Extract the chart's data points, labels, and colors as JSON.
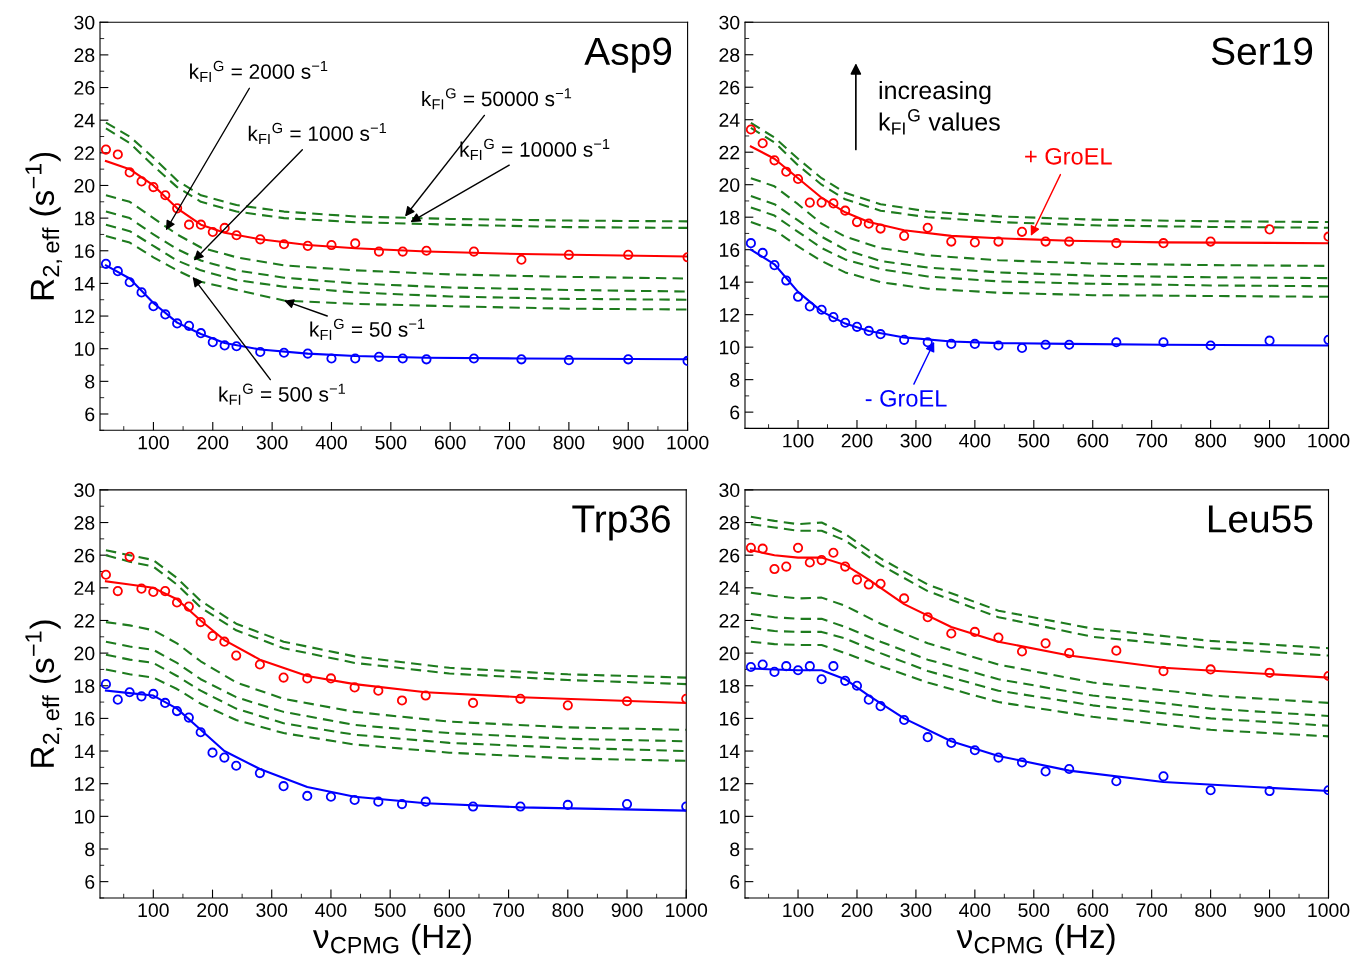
{
  "chart_data": [
    {
      "type": "line",
      "title": "Asp9",
      "ylabel": "R$_{2,eff}$ (s$^{−1}$)",
      "xlim": [
        10,
        1000
      ],
      "xticks": [
        100,
        200,
        300,
        400,
        500,
        600,
        700,
        800,
        900,
        1000
      ],
      "ylim": [
        5,
        30
      ],
      "yticks": [
        6,
        8,
        10,
        12,
        14,
        16,
        18,
        20,
        22,
        24,
        26,
        28,
        30
      ],
      "x": [
        20,
        40,
        60,
        80,
        100,
        120,
        140,
        160,
        180,
        200,
        220,
        240,
        280,
        320,
        360,
        400,
        440,
        480,
        520,
        560,
        640,
        720,
        800,
        900,
        1000
      ],
      "series": [
        {
          "type": "scatter",
          "marker": "circle",
          "color": "#ff0000",
          "values": [
            22.2,
            21.9,
            20.8,
            20.25,
            19.9,
            19.4,
            18.6,
            17.6,
            17.6,
            17.15,
            17.4,
            16.95,
            16.7,
            16.4,
            16.3,
            16.35,
            16.45,
            15.95,
            15.95,
            16.0,
            15.95,
            15.45,
            15.75,
            15.75,
            15.6
          ]
        },
        {
          "type": "line",
          "color": "#ff0000",
          "x": [
            20,
            60,
            100,
            140,
            180,
            220,
            280,
            360,
            440,
            560,
            720,
            1000
          ],
          "values": [
            21.5,
            21.0,
            20.0,
            18.6,
            17.6,
            17.1,
            16.7,
            16.35,
            16.15,
            15.95,
            15.8,
            15.65
          ]
        },
        {
          "type": "scatter",
          "marker": "circle",
          "color": "#0000ff",
          "values": [
            15.2,
            14.75,
            14.07,
            13.45,
            12.6,
            12.1,
            11.55,
            11.4,
            10.95,
            10.4,
            10.2,
            10.15,
            9.8,
            9.75,
            9.7,
            9.4,
            9.4,
            9.5,
            9.4,
            9.35,
            9.4,
            9.35,
            9.3,
            9.35,
            9.25
          ]
        },
        {
          "type": "line",
          "color": "#0000ff",
          "x": [
            20,
            60,
            100,
            140,
            180,
            220,
            280,
            360,
            440,
            560,
            720,
            1000
          ],
          "values": [
            15.1,
            14.3,
            12.8,
            11.6,
            10.9,
            10.35,
            9.95,
            9.7,
            9.55,
            9.45,
            9.4,
            9.35
          ]
        },
        {
          "type": "line",
          "line_style": "dashed",
          "color": "#1e7b1e",
          "x": [
            20,
            60,
            100,
            140,
            180,
            240,
            320,
            440,
            600,
            800,
            1000
          ],
          "values": [
            23.85,
            23.0,
            21.7,
            20.3,
            19.4,
            18.8,
            18.4,
            18.1,
            17.95,
            17.85,
            17.8
          ]
        },
        {
          "type": "line",
          "line_style": "dashed",
          "color": "#1e7b1e",
          "x": [
            20,
            60,
            100,
            140,
            180,
            240,
            320,
            440,
            600,
            800,
            1000
          ],
          "values": [
            23.5,
            22.6,
            21.2,
            19.9,
            19.0,
            18.4,
            18.0,
            17.75,
            17.6,
            17.45,
            17.4
          ]
        },
        {
          "type": "line",
          "line_style": "dashed",
          "color": "#1e7b1e",
          "x": [
            20,
            60,
            100,
            140,
            180,
            240,
            320,
            440,
            600,
            800,
            1000
          ],
          "values": [
            19.4,
            19.0,
            18.0,
            17.0,
            16.2,
            15.6,
            15.1,
            14.8,
            14.55,
            14.4,
            14.3
          ]
        },
        {
          "type": "line",
          "line_style": "dashed",
          "color": "#1e7b1e",
          "x": [
            20,
            60,
            100,
            140,
            180,
            240,
            320,
            440,
            600,
            800,
            1000
          ],
          "values": [
            18.4,
            18.0,
            17.0,
            16.1,
            15.4,
            14.8,
            14.35,
            14.0,
            13.75,
            13.6,
            13.5
          ]
        },
        {
          "type": "line",
          "line_style": "dashed",
          "color": "#1e7b1e",
          "x": [
            20,
            60,
            100,
            140,
            180,
            240,
            320,
            440,
            600,
            800,
            1000
          ],
          "values": [
            17.6,
            17.2,
            16.3,
            15.4,
            14.8,
            14.2,
            13.8,
            13.45,
            13.2,
            13.05,
            13.0
          ]
        },
        {
          "type": "line",
          "line_style": "dashed",
          "color": "#1e7b1e",
          "x": [
            20,
            60,
            100,
            140,
            180,
            240,
            320,
            440,
            600,
            800,
            1000
          ],
          "values": [
            16.9,
            16.5,
            15.6,
            14.8,
            14.1,
            13.6,
            12.95,
            12.75,
            12.6,
            12.45,
            12.4
          ]
        }
      ],
      "annotations": [
        {
          "text": "k$_{FI}$$^{G}$ = 2000 s$^{−1}$",
          "x": 121,
          "y": 17.25
        },
        {
          "text": "k$_{FI}$$^{G}$ = 1000 s$^{−1}$",
          "x": 168,
          "y": 15.4
        },
        {
          "text": "k$_{FI}$$^{G}$ = 50000 s$^{−1}$",
          "x": 524,
          "y": 18.1
        },
        {
          "text": "k$_{FI}$$^{G}$ = 10000 s$^{−1}$",
          "x": 533,
          "y": 17.75
        },
        {
          "text": "k$_{FI}$$^{G}$ = 50 s$^{−1}$",
          "x": 320,
          "y": 12.95
        },
        {
          "text": "k$_{FI}$$^{G}$ = 500 s$^{−1}$",
          "x": 166,
          "y": 14.4
        }
      ]
    },
    {
      "type": "line",
      "title": "Ser19",
      "xlim": [
        10,
        1000
      ],
      "xticks": [
        100,
        200,
        300,
        400,
        500,
        600,
        700,
        800,
        900,
        1000
      ],
      "ylim": [
        5,
        30
      ],
      "yticks": [
        6,
        8,
        10,
        12,
        14,
        16,
        18,
        20,
        22,
        24,
        26,
        28,
        30
      ],
      "x": [
        20,
        40,
        60,
        80,
        100,
        120,
        140,
        160,
        180,
        200,
        220,
        240,
        280,
        320,
        360,
        400,
        440,
        480,
        520,
        560,
        640,
        720,
        800,
        900,
        1000
      ],
      "series": [
        {
          "type": "scatter",
          "marker": "circle",
          "color": "#ff0000",
          "values": [
            23.4,
            22.55,
            21.5,
            20.8,
            20.35,
            18.9,
            18.9,
            18.85,
            18.4,
            17.7,
            17.6,
            17.3,
            16.85,
            17.35,
            16.5,
            16.45,
            16.5,
            17.1,
            16.5,
            16.5,
            16.4,
            16.4,
            16.5,
            17.25,
            16.8
          ]
        },
        {
          "type": "line",
          "color": "#ff0000",
          "x": [
            20,
            60,
            100,
            140,
            180,
            220,
            280,
            360,
            440,
            560,
            720,
            1000
          ],
          "values": [
            22.35,
            21.6,
            20.4,
            19.2,
            18.3,
            17.7,
            17.2,
            16.85,
            16.7,
            16.55,
            16.45,
            16.4
          ]
        },
        {
          "type": "scatter",
          "marker": "circle",
          "color": "#0000ff",
          "values": [
            16.4,
            15.8,
            15.05,
            14.1,
            13.1,
            12.5,
            12.3,
            11.85,
            11.5,
            11.25,
            11.0,
            10.8,
            10.45,
            10.3,
            10.2,
            10.2,
            10.1,
            9.95,
            10.15,
            10.15,
            10.3,
            10.3,
            10.1,
            10.4,
            10.45
          ]
        },
        {
          "type": "line",
          "color": "#0000ff",
          "x": [
            20,
            60,
            100,
            140,
            180,
            220,
            280,
            360,
            440,
            560,
            720,
            1000
          ],
          "values": [
            16.0,
            15.1,
            13.4,
            12.2,
            11.45,
            11.0,
            10.6,
            10.35,
            10.25,
            10.2,
            10.15,
            10.1
          ]
        },
        {
          "type": "line",
          "line_style": "dashed",
          "color": "#1e7b1e",
          "x": [
            20,
            60,
            100,
            140,
            180,
            240,
            320,
            440,
            600,
            800,
            1000
          ],
          "values": [
            23.8,
            22.9,
            21.6,
            20.4,
            19.5,
            18.8,
            18.35,
            18.05,
            17.85,
            17.75,
            17.7
          ]
        },
        {
          "type": "line",
          "line_style": "dashed",
          "color": "#1e7b1e",
          "x": [
            20,
            60,
            100,
            140,
            180,
            240,
            320,
            440,
            600,
            800,
            1000
          ],
          "values": [
            23.5,
            22.6,
            21.2,
            20.0,
            19.1,
            18.4,
            18.0,
            17.7,
            17.5,
            17.4,
            17.35
          ]
        },
        {
          "type": "line",
          "line_style": "dashed",
          "color": "#1e7b1e",
          "x": [
            20,
            60,
            100,
            140,
            180,
            240,
            320,
            440,
            600,
            800,
            1000
          ],
          "values": [
            20.4,
            19.9,
            18.8,
            17.6,
            16.8,
            16.1,
            15.65,
            15.35,
            15.15,
            15.05,
            15.0
          ]
        },
        {
          "type": "line",
          "line_style": "dashed",
          "color": "#1e7b1e",
          "x": [
            20,
            60,
            100,
            140,
            180,
            240,
            320,
            440,
            600,
            800,
            1000
          ],
          "values": [
            19.3,
            18.8,
            17.8,
            16.8,
            16.0,
            15.3,
            14.9,
            14.6,
            14.4,
            14.3,
            14.25
          ]
        },
        {
          "type": "line",
          "line_style": "dashed",
          "color": "#1e7b1e",
          "x": [
            20,
            60,
            100,
            140,
            180,
            240,
            320,
            440,
            600,
            800,
            1000
          ],
          "values": [
            18.6,
            18.1,
            17.1,
            16.1,
            15.4,
            14.8,
            14.35,
            14.05,
            13.9,
            13.8,
            13.75
          ]
        },
        {
          "type": "line",
          "line_style": "dashed",
          "color": "#1e7b1e",
          "x": [
            20,
            60,
            100,
            140,
            180,
            240,
            320,
            440,
            600,
            800,
            1000
          ],
          "values": [
            17.7,
            17.2,
            16.2,
            15.3,
            14.6,
            14.0,
            13.6,
            13.35,
            13.2,
            13.15,
            13.1
          ]
        }
      ],
      "annotations": [
        "increasing\nk$_{FI}$$^{G}$ values",
        {
          "text": "+ GroEL",
          "x": 495,
          "y": 16.85
        },
        {
          "text": "- GroEL",
          "x": 331,
          "y": 10.33
        }
      ]
    },
    {
      "type": "line",
      "title": "Trp36",
      "ylabel": "R$_{2,eff}$ (s$^{−1}$)",
      "xlabel": "ν$_{CPMG}$ (Hz)",
      "xlim": [
        10,
        1000
      ],
      "xticks": [
        100,
        200,
        300,
        400,
        500,
        600,
        700,
        800,
        900,
        1000
      ],
      "ylim": [
        5,
        30
      ],
      "yticks": [
        6,
        8,
        10,
        12,
        14,
        16,
        18,
        20,
        22,
        24,
        26,
        28,
        30
      ],
      "x": [
        20,
        40,
        60,
        80,
        100,
        120,
        140,
        160,
        180,
        200,
        220,
        240,
        280,
        320,
        360,
        400,
        440,
        480,
        520,
        560,
        640,
        720,
        800,
        900,
        1000
      ],
      "series": [
        {
          "type": "scatter",
          "marker": "circle",
          "color": "#ff0000",
          "values": [
            24.8,
            23.8,
            25.9,
            23.95,
            23.75,
            23.8,
            23.1,
            22.85,
            21.9,
            21.05,
            20.7,
            19.85,
            19.3,
            18.5,
            18.45,
            18.45,
            17.9,
            17.7,
            17.1,
            17.4,
            16.95,
            17.2,
            16.8,
            17.05,
            17.2
          ]
        },
        {
          "type": "line",
          "color": "#ff0000",
          "x": [
            20,
            60,
            100,
            140,
            180,
            220,
            280,
            360,
            440,
            560,
            720,
            1000
          ],
          "values": [
            24.4,
            24.2,
            24.0,
            23.3,
            22.0,
            20.8,
            19.6,
            18.6,
            18.1,
            17.6,
            17.3,
            16.95
          ]
        },
        {
          "type": "scatter",
          "marker": "circle",
          "color": "#0000ff",
          "values": [
            18.1,
            17.15,
            17.6,
            17.35,
            17.5,
            16.95,
            16.45,
            16.05,
            15.15,
            13.9,
            13.6,
            13.1,
            12.65,
            11.85,
            11.25,
            11.2,
            11.0,
            10.9,
            10.75,
            10.9,
            10.6,
            10.6,
            10.7,
            10.75,
            10.6
          ]
        },
        {
          "type": "line",
          "color": "#0000ff",
          "x": [
            20,
            60,
            100,
            140,
            180,
            220,
            280,
            360,
            440,
            560,
            720,
            1000
          ],
          "values": [
            17.7,
            17.55,
            17.4,
            16.6,
            15.3,
            14.0,
            12.9,
            11.8,
            11.2,
            10.8,
            10.55,
            10.35
          ]
        },
        {
          "type": "line",
          "line_style": "dashed",
          "color": "#1e7b1e",
          "x": [
            20,
            60,
            100,
            140,
            180,
            240,
            320,
            440,
            600,
            800,
            1000
          ],
          "values": [
            26.3,
            26.0,
            25.7,
            24.6,
            23.2,
            21.8,
            20.7,
            19.8,
            19.1,
            18.7,
            18.5
          ]
        },
        {
          "type": "line",
          "line_style": "dashed",
          "color": "#1e7b1e",
          "x": [
            20,
            60,
            100,
            140,
            180,
            240,
            320,
            440,
            600,
            800,
            1000
          ],
          "values": [
            26.0,
            25.6,
            25.3,
            24.2,
            22.8,
            21.4,
            20.3,
            19.4,
            18.75,
            18.35,
            18.1
          ]
        },
        {
          "type": "line",
          "line_style": "dashed",
          "color": "#1e7b1e",
          "x": [
            20,
            60,
            100,
            140,
            180,
            240,
            320,
            440,
            600,
            800,
            1000
          ],
          "values": [
            21.9,
            21.7,
            21.4,
            20.6,
            19.5,
            18.2,
            17.2,
            16.4,
            15.8,
            15.45,
            15.3
          ]
        },
        {
          "type": "line",
          "line_style": "dashed",
          "color": "#1e7b1e",
          "x": [
            20,
            60,
            100,
            140,
            180,
            240,
            320,
            440,
            600,
            800,
            1000
          ],
          "values": [
            20.7,
            20.4,
            20.2,
            19.4,
            18.4,
            17.3,
            16.4,
            15.6,
            15.1,
            14.75,
            14.6
          ]
        },
        {
          "type": "line",
          "line_style": "dashed",
          "color": "#1e7b1e",
          "x": [
            20,
            60,
            100,
            140,
            180,
            240,
            320,
            440,
            600,
            800,
            1000
          ],
          "values": [
            19.9,
            19.6,
            19.4,
            18.6,
            17.7,
            16.6,
            15.7,
            15.0,
            14.5,
            14.2,
            14.0
          ]
        },
        {
          "type": "line",
          "line_style": "dashed",
          "color": "#1e7b1e",
          "x": [
            20,
            60,
            100,
            140,
            180,
            240,
            320,
            440,
            600,
            800,
            1000
          ],
          "values": [
            19.0,
            18.7,
            18.5,
            17.8,
            16.9,
            15.9,
            15.1,
            14.4,
            13.9,
            13.55,
            13.4
          ]
        }
      ]
    },
    {
      "type": "line",
      "title": "Leu55",
      "xlabel": "ν$_{CPMG}$ (Hz)",
      "xlim": [
        10,
        1000
      ],
      "xticks": [
        100,
        200,
        300,
        400,
        500,
        600,
        700,
        800,
        900,
        1000
      ],
      "ylim": [
        5,
        30
      ],
      "yticks": [
        6,
        8,
        10,
        12,
        14,
        16,
        18,
        20,
        22,
        24,
        26,
        28,
        30
      ],
      "x": [
        20,
        40,
        60,
        80,
        100,
        120,
        140,
        160,
        180,
        200,
        220,
        240,
        280,
        320,
        360,
        400,
        440,
        480,
        520,
        560,
        640,
        720,
        800,
        900,
        1000
      ],
      "series": [
        {
          "type": "scatter",
          "marker": "circle",
          "color": "#ff0000",
          "values": [
            26.45,
            26.4,
            25.15,
            25.3,
            26.45,
            25.55,
            25.7,
            26.15,
            25.3,
            24.5,
            24.2,
            24.25,
            23.35,
            22.2,
            21.2,
            21.3,
            20.95,
            20.1,
            20.6,
            20.0,
            20.15,
            18.9,
            19.0,
            18.8,
            18.6
          ]
        },
        {
          "type": "line",
          "color": "#ff0000",
          "x": [
            20,
            60,
            100,
            140,
            180,
            220,
            280,
            360,
            440,
            560,
            720,
            1000
          ],
          "values": [
            26.3,
            26.0,
            25.85,
            25.85,
            25.4,
            24.5,
            23.0,
            21.6,
            20.7,
            19.85,
            19.1,
            18.5
          ]
        },
        {
          "type": "scatter",
          "marker": "circle",
          "color": "#0000ff",
          "values": [
            19.15,
            19.3,
            18.85,
            19.2,
            18.95,
            19.2,
            18.4,
            19.2,
            18.3,
            18.0,
            17.15,
            16.75,
            15.9,
            14.85,
            14.5,
            14.05,
            13.6,
            13.3,
            12.75,
            12.9,
            12.15,
            12.45,
            11.6,
            11.55,
            11.6
          ]
        },
        {
          "type": "line",
          "color": "#0000ff",
          "x": [
            20,
            60,
            100,
            140,
            180,
            220,
            280,
            360,
            440,
            560,
            720,
            1000
          ],
          "values": [
            19.05,
            19.0,
            18.95,
            18.95,
            18.4,
            17.4,
            16.0,
            14.6,
            13.7,
            12.8,
            12.1,
            11.55
          ]
        },
        {
          "type": "line",
          "line_style": "dashed",
          "color": "#1e7b1e",
          "x": [
            20,
            60,
            100,
            140,
            180,
            240,
            320,
            440,
            600,
            800,
            1000
          ],
          "values": [
            28.35,
            28.1,
            27.9,
            28.0,
            27.3,
            25.8,
            24.2,
            22.6,
            21.5,
            20.75,
            20.3
          ]
        },
        {
          "type": "line",
          "line_style": "dashed",
          "color": "#1e7b1e",
          "x": [
            20,
            60,
            100,
            140,
            180,
            240,
            320,
            440,
            600,
            800,
            1000
          ],
          "values": [
            27.9,
            27.7,
            27.5,
            27.5,
            26.9,
            25.4,
            23.8,
            22.2,
            21.0,
            20.3,
            19.85
          ]
        },
        {
          "type": "line",
          "line_style": "dashed",
          "color": "#1e7b1e",
          "x": [
            20,
            60,
            100,
            140,
            180,
            240,
            320,
            440,
            600,
            800,
            1000
          ],
          "values": [
            23.7,
            23.5,
            23.35,
            23.4,
            22.9,
            21.8,
            20.6,
            19.3,
            18.2,
            17.4,
            16.95
          ]
        },
        {
          "type": "line",
          "line_style": "dashed",
          "color": "#1e7b1e",
          "x": [
            20,
            60,
            100,
            140,
            180,
            240,
            320,
            440,
            600,
            800,
            1000
          ],
          "values": [
            22.4,
            22.2,
            22.1,
            22.1,
            21.6,
            20.7,
            19.6,
            18.4,
            17.4,
            16.6,
            16.15
          ]
        },
        {
          "type": "line",
          "line_style": "dashed",
          "color": "#1e7b1e",
          "x": [
            20,
            60,
            100,
            140,
            180,
            240,
            320,
            440,
            600,
            800,
            1000
          ],
          "values": [
            21.55,
            21.35,
            21.3,
            21.3,
            20.9,
            20.0,
            18.9,
            17.7,
            16.8,
            16.0,
            15.55
          ]
        },
        {
          "type": "line",
          "line_style": "dashed",
          "color": "#1e7b1e",
          "x": [
            20,
            60,
            100,
            140,
            180,
            240,
            320,
            440,
            600,
            800,
            1000
          ],
          "values": [
            20.7,
            20.55,
            20.5,
            20.5,
            20.0,
            19.2,
            18.2,
            17.0,
            16.1,
            15.3,
            14.9
          ]
        }
      ]
    }
  ]
}
